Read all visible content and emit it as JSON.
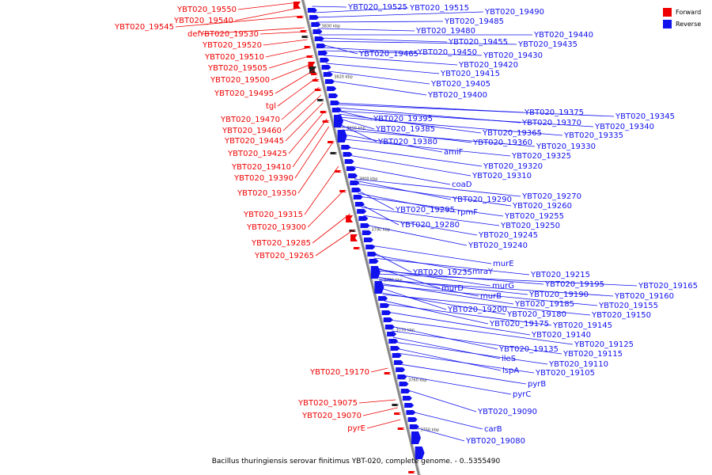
{
  "caption": "Bacillus thuringiensis serovar finitimus YBT-020, complete genome. - 0..5355490",
  "legend": [
    {
      "label": "Forward",
      "color": "#ee0000"
    },
    {
      "label": "Reverse",
      "color": "#1111ee"
    }
  ],
  "colors": {
    "forward": "#ee0000",
    "reverse": "#1111ee",
    "axis": "#999999"
  },
  "scale_labels": [
    "3830 kbp",
    "3820 kbp",
    "3810 kbp",
    "3800 kbp",
    "3790 kbp",
    "3780 kbp",
    "3770 kbp",
    "3760 kbp",
    "3750 kbp"
  ],
  "forward_genes": [
    "YBT020_19550",
    "YBT020_19540",
    "YBT020_19545",
    "def",
    "YBT020_19530",
    "YBT020_19520",
    "YBT020_19510",
    "YBT020_19505",
    "YBT020_19500",
    "YBT020_19495",
    "tgl",
    "YBT020_19470",
    "YBT020_19460",
    "YBT020_19445",
    "YBT020_19425",
    "YBT020_19410",
    "YBT020_19390",
    "YBT020_19350",
    "YBT020_19315",
    "YBT020_19300",
    "YBT020_19285",
    "YBT020_19265",
    "YBT020_19170",
    "YBT020_19075",
    "YBT020_19070",
    "pyrE"
  ],
  "reverse_genes": [
    "YBT020_19525",
    "YBT020_19515",
    "YBT020_19490",
    "YBT020_19485",
    "YBT020_19480",
    "YBT020_19440",
    "YBT020_19455",
    "YBT020_19435",
    "YBT020_19465",
    "YBT020_19450",
    "YBT020_19430",
    "YBT020_19420",
    "YBT020_19415",
    "YBT020_19405",
    "YBT020_19400",
    "YBT020_19375",
    "YBT020_19345",
    "YBT020_19395",
    "YBT020_19370",
    "YBT020_19340",
    "YBT020_19385",
    "YBT020_19365",
    "YBT020_19335",
    "YBT020_19380",
    "YBT020_19360",
    "YBT020_19330",
    "amiF",
    "YBT020_19325",
    "YBT020_19320",
    "YBT020_19310",
    "coaD",
    "YBT020_19290",
    "YBT020_19270",
    "YBT020_19260",
    "YBT020_19295",
    "rpmF",
    "YBT020_19255",
    "YBT020_19280",
    "YBT020_19250",
    "YBT020_19245",
    "YBT020_19240",
    "murE",
    "YBT020_19235",
    "mraY",
    "YBT020_19215",
    "murD",
    "murG",
    "YBT020_19195",
    "YBT020_19165",
    "murB",
    "YBT020_19190",
    "YBT020_19160",
    "YBT020_19185",
    "YBT020_19155",
    "YBT020_19200",
    "YBT020_19180",
    "YBT020_19150",
    "YBT020_19175",
    "YBT020_19145",
    "YBT020_19140",
    "YBT020_19125",
    "YBT020_19135",
    "YBT020_19115",
    "ileS",
    "YBT020_19110",
    "lspA",
    "YBT020_19105",
    "pyrB",
    "pyrC",
    "YBT020_19090",
    "carB",
    "YBT020_19080"
  ]
}
